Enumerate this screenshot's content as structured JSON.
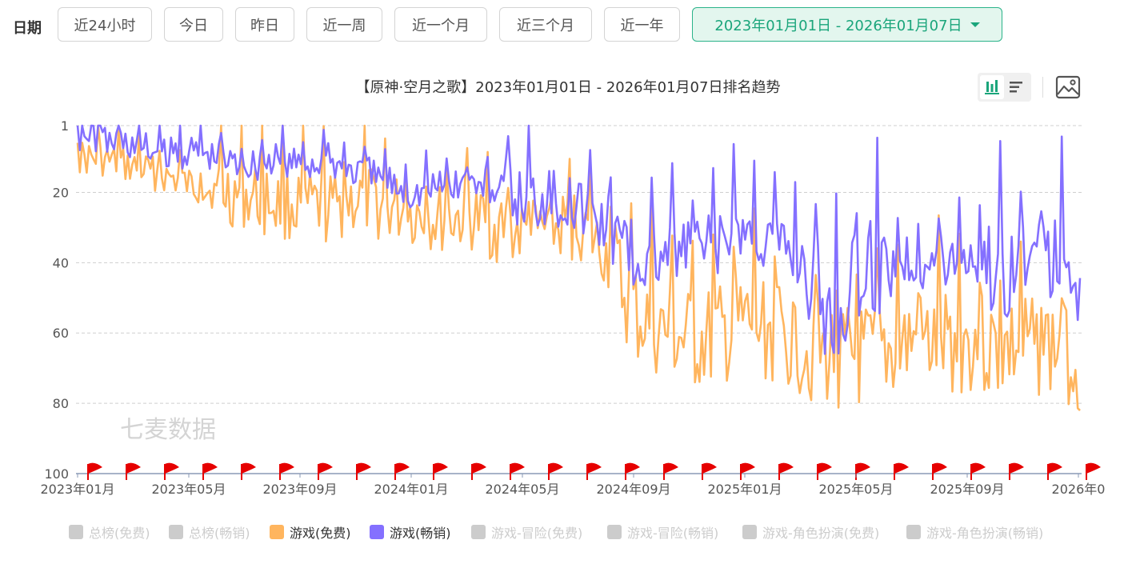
{
  "filter": {
    "date_label": "日期",
    "buttons": [
      "近24小时",
      "今日",
      "昨日",
      "近一周",
      "近一个月",
      "近三个月",
      "近一年"
    ],
    "range_label": "2023年01月01日 - 2026年01月07日"
  },
  "toolbar": {
    "view_toggle_icons": [
      "bar-chart-icon",
      "list-icon"
    ],
    "save_image_icon": "image-icon"
  },
  "colors": {
    "free": "#ffb55e",
    "paid": "#8470ff",
    "inactive": "#cccccc",
    "accent": "#1aa57b"
  },
  "watermark": "七麦数据",
  "chart_data": {
    "type": "line",
    "title": "【原神·空月之歌】2023年01月01日 - 2026年01月07日排名趋势",
    "y_axis": {
      "inverted": true,
      "ticks": [
        "1",
        "20",
        "40",
        "60",
        "80",
        "100"
      ],
      "range": [
        1,
        100
      ]
    },
    "x_axis": {
      "range": [
        "2023-01-01",
        "2026-01-07"
      ],
      "ticks": [
        "2023年01月",
        "2023年05月",
        "2023年09月",
        "2024年01月",
        "2024年05月",
        "2024年09月",
        "2025年01月",
        "2025年05月",
        "2025年09月",
        "2026年0"
      ]
    },
    "grid": "horizontal dashed",
    "legend_position": "bottom",
    "legend": [
      {
        "name": "总榜(免费)",
        "active": false
      },
      {
        "name": "总榜(畅销)",
        "active": false
      },
      {
        "name": "游戏(免费)",
        "active": true
      },
      {
        "name": "游戏(畅销)",
        "active": true
      },
      {
        "name": "游戏-冒险(免费)",
        "active": false
      },
      {
        "name": "游戏-冒险(畅销)",
        "active": false
      },
      {
        "name": "游戏-角色扮演(免费)",
        "active": false
      },
      {
        "name": "游戏-角色扮演(畅销)",
        "active": false
      }
    ],
    "series": [
      {
        "name": "游戏(免费)",
        "x": [
          "2023-01",
          "2023-02",
          "2023-03",
          "2023-04",
          "2023-05",
          "2023-06",
          "2023-07",
          "2023-08",
          "2023-09",
          "2023-10",
          "2023-11",
          "2023-12",
          "2024-01",
          "2024-02",
          "2024-03",
          "2024-04",
          "2024-05",
          "2024-06",
          "2024-07",
          "2024-08",
          "2024-09",
          "2024-10",
          "2024-11",
          "2024-12",
          "2025-01",
          "2025-02",
          "2025-03",
          "2025-04",
          "2025-05",
          "2025-06",
          "2025-07",
          "2025-08",
          "2025-09",
          "2025-10",
          "2025-11",
          "2025-12",
          "2026-01"
        ],
        "values": [
          10,
          11,
          13,
          15,
          18,
          20,
          21,
          23,
          24,
          25,
          22,
          24,
          26,
          28,
          27,
          30,
          32,
          31,
          29,
          38,
          55,
          60,
          63,
          62,
          58,
          60,
          64,
          67,
          68,
          66,
          63,
          64,
          62,
          65,
          64,
          64,
          68
        ]
      },
      {
        "name": "游戏(畅销)",
        "x": [
          "2023-01",
          "2023-02",
          "2023-03",
          "2023-04",
          "2023-05",
          "2023-06",
          "2023-07",
          "2023-08",
          "2023-09",
          "2023-10",
          "2023-11",
          "2023-12",
          "2024-01",
          "2024-02",
          "2024-03",
          "2024-04",
          "2024-05",
          "2024-06",
          "2024-07",
          "2024-08",
          "2024-09",
          "2024-10",
          "2024-11",
          "2024-12",
          "2025-01",
          "2025-02",
          "2025-03",
          "2025-04",
          "2025-05",
          "2025-06",
          "2025-07",
          "2025-08",
          "2025-09",
          "2025-10",
          "2025-11",
          "2025-12",
          "2026-01"
        ],
        "values": [
          3,
          5,
          6,
          9,
          8,
          10,
          12,
          11,
          12,
          11,
          14,
          16,
          20,
          18,
          17,
          19,
          22,
          20,
          24,
          28,
          40,
          38,
          36,
          35,
          30,
          34,
          38,
          55,
          45,
          40,
          38,
          40,
          36,
          42,
          38,
          40,
          42
        ]
      }
    ],
    "event_markers": {
      "type": "red-flag",
      "count": 27
    }
  }
}
